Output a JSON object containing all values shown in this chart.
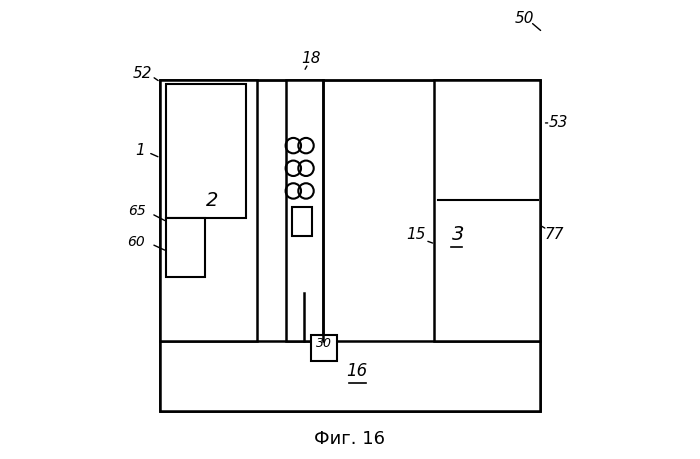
{
  "bg_color": "#ffffff",
  "fig_label": "Фиг. 16"
}
